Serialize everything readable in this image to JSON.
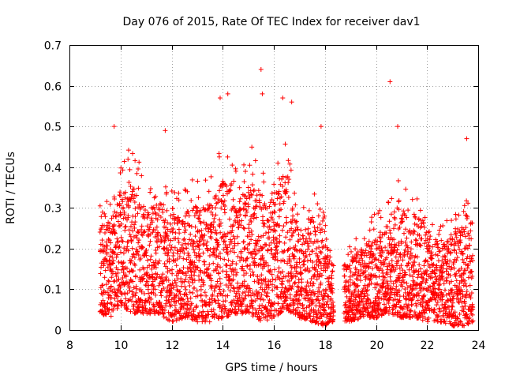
{
  "chart_data": {
    "type": "scatter",
    "title": "Day 076 of 2015, Rate Of TEC Index for receiver dav1",
    "xlabel": "GPS time / hours",
    "ylabel": "ROTI / TECUs",
    "xlim": [
      8,
      24
    ],
    "ylim": [
      0,
      0.7
    ],
    "xticks": [
      8,
      10,
      12,
      14,
      16,
      18,
      20,
      22,
      24
    ],
    "yticks": [
      0,
      0.1,
      0.2,
      0.3,
      0.4,
      0.5,
      0.6,
      0.7
    ],
    "xtick_labels": [
      "8",
      "10",
      "12",
      "14",
      "16",
      "18",
      "20",
      "22",
      "24"
    ],
    "ytick_labels": [
      "0",
      "0.1",
      "0.2",
      "0.3",
      "0.4",
      "0.5",
      "0.6",
      "0.7"
    ],
    "grid": true,
    "marker": "+",
    "color": "#ff0000",
    "data_span_hours": [
      9.2,
      23.8
    ],
    "notable_points": [
      {
        "x": 9.75,
        "y": 0.5
      },
      {
        "x": 11.75,
        "y": 0.49
      },
      {
        "x": 13.9,
        "y": 0.57
      },
      {
        "x": 14.2,
        "y": 0.58
      },
      {
        "x": 15.5,
        "y": 0.64
      },
      {
        "x": 15.55,
        "y": 0.58
      },
      {
        "x": 16.35,
        "y": 0.57
      },
      {
        "x": 16.7,
        "y": 0.56
      },
      {
        "x": 17.85,
        "y": 0.5
      },
      {
        "x": 20.55,
        "y": 0.61
      },
      {
        "x": 20.85,
        "y": 0.5
      },
      {
        "x": 23.55,
        "y": 0.47
      }
    ],
    "envelope": [
      {
        "x": 9.2,
        "low": 0.04,
        "high": 0.37
      },
      {
        "x": 9.6,
        "low": 0.03,
        "high": 0.33
      },
      {
        "x": 10.0,
        "low": 0.06,
        "high": 0.42
      },
      {
        "x": 10.5,
        "low": 0.04,
        "high": 0.47
      },
      {
        "x": 11.0,
        "low": 0.04,
        "high": 0.38
      },
      {
        "x": 11.5,
        "low": 0.04,
        "high": 0.4
      },
      {
        "x": 12.0,
        "low": 0.02,
        "high": 0.36
      },
      {
        "x": 12.5,
        "low": 0.03,
        "high": 0.36
      },
      {
        "x": 13.0,
        "low": 0.02,
        "high": 0.39
      },
      {
        "x": 13.5,
        "low": 0.02,
        "high": 0.39
      },
      {
        "x": 14.0,
        "low": 0.03,
        "high": 0.48
      },
      {
        "x": 14.5,
        "low": 0.04,
        "high": 0.4
      },
      {
        "x": 15.0,
        "low": 0.04,
        "high": 0.46
      },
      {
        "x": 15.5,
        "low": 0.02,
        "high": 0.43
      },
      {
        "x": 16.0,
        "low": 0.03,
        "high": 0.4
      },
      {
        "x": 16.5,
        "low": 0.05,
        "high": 0.5
      },
      {
        "x": 17.0,
        "low": 0.03,
        "high": 0.3
      },
      {
        "x": 17.5,
        "low": 0.02,
        "high": 0.36
      },
      {
        "x": 18.0,
        "low": 0.01,
        "high": 0.31
      },
      {
        "x": 18.3,
        "low": 0.02,
        "high": 0.2
      },
      {
        "x": 18.9,
        "low": 0.02,
        "high": 0.2
      },
      {
        "x": 19.5,
        "low": 0.03,
        "high": 0.26
      },
      {
        "x": 20.0,
        "low": 0.03,
        "high": 0.29
      },
      {
        "x": 20.5,
        "low": 0.04,
        "high": 0.32
      },
      {
        "x": 21.0,
        "low": 0.03,
        "high": 0.39
      },
      {
        "x": 21.5,
        "low": 0.03,
        "high": 0.37
      },
      {
        "x": 22.0,
        "low": 0.02,
        "high": 0.33
      },
      {
        "x": 22.5,
        "low": 0.02,
        "high": 0.26
      },
      {
        "x": 23.0,
        "low": 0.01,
        "high": 0.29
      },
      {
        "x": 23.5,
        "low": 0.01,
        "high": 0.37
      },
      {
        "x": 23.8,
        "low": 0.02,
        "high": 0.32
      }
    ],
    "gaps": [
      [
        18.35,
        18.75
      ]
    ],
    "sample_step_hours": 0.012
  }
}
